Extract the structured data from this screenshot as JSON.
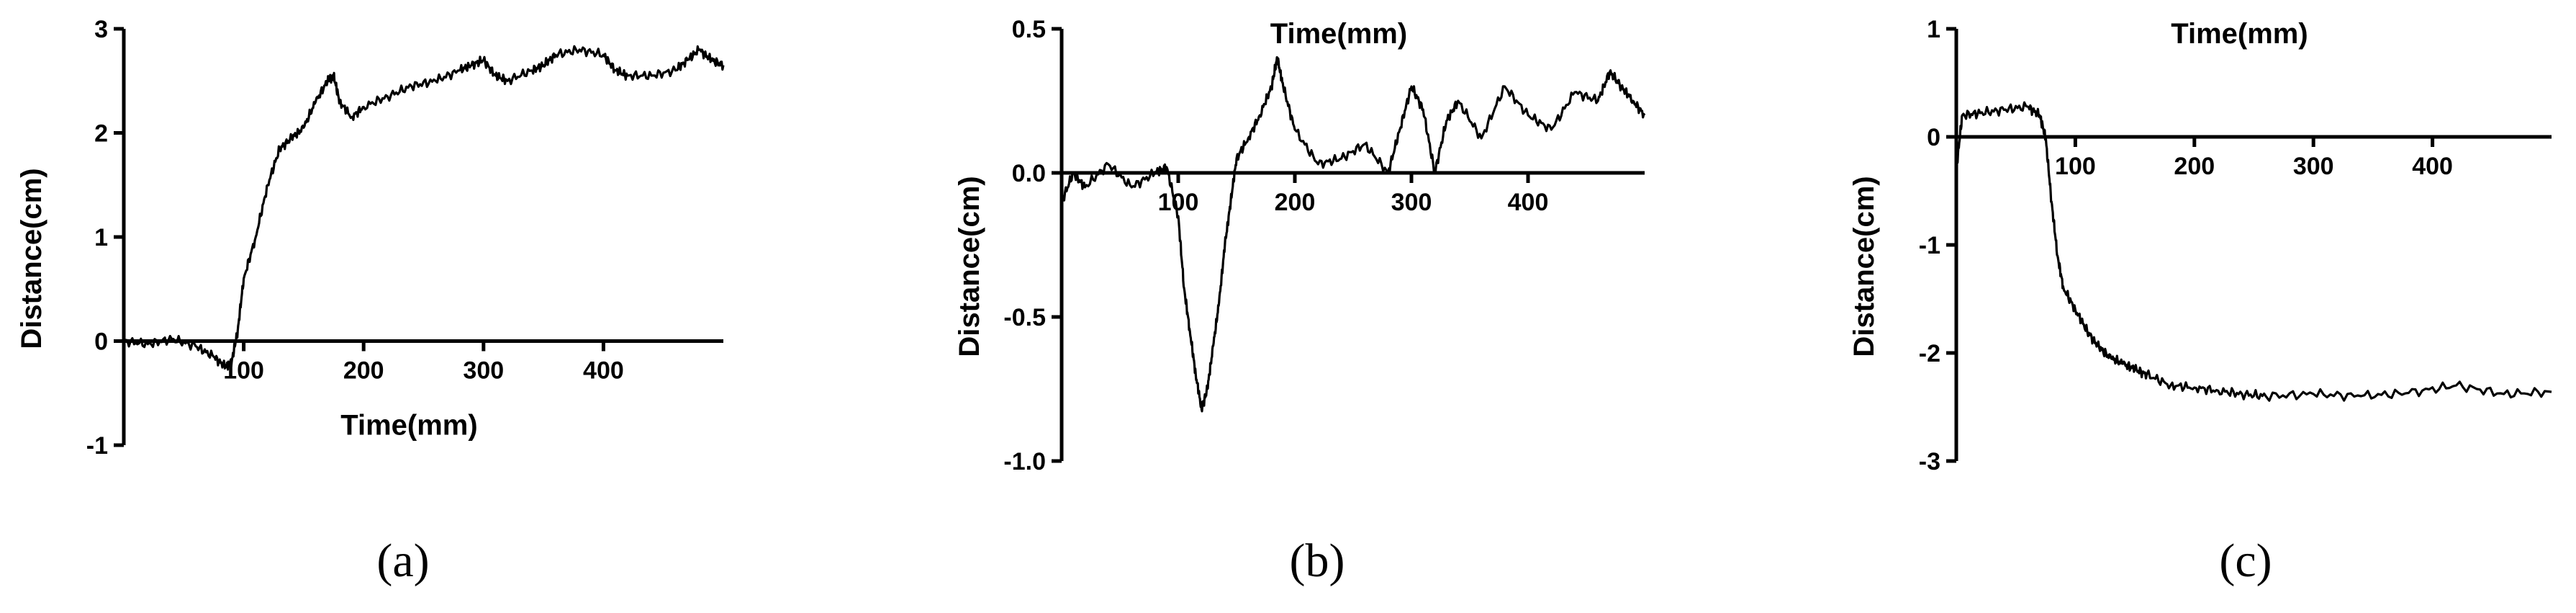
{
  "chart_data": [
    {
      "type": "line",
      "panel": "(a)",
      "xlabel": "Time(mm)",
      "ylabel": "Distance(cm)",
      "xlim": [
        0,
        500
      ],
      "ylim": [
        -1,
        3
      ],
      "xticks": [
        100,
        200,
        300,
        400
      ],
      "yticks": [
        -1,
        0,
        1,
        2,
        3
      ],
      "xtick_labels": [
        "100",
        "200",
        "300",
        "400"
      ],
      "ytick_labels": [
        "-1",
        "0",
        "1",
        "2",
        "3"
      ],
      "x_axis_at": 0,
      "xlabel_position": "below",
      "series": [
        {
          "x": [
            0,
            20,
            40,
            60,
            75,
            85,
            90,
            95,
            100,
            110,
            120,
            130,
            140,
            150,
            160,
            170,
            175,
            180,
            190,
            200,
            220,
            240,
            260,
            280,
            290,
            300,
            310,
            320,
            340,
            350,
            360,
            380,
            400,
            410,
            420,
            440,
            460,
            470,
            480,
            490,
            500
          ],
          "y": [
            0.0,
            -0.03,
            0.02,
            -0.05,
            -0.15,
            -0.25,
            -0.2,
            0.1,
            0.6,
            1.0,
            1.5,
            1.85,
            1.95,
            2.05,
            2.3,
            2.5,
            2.55,
            2.3,
            2.15,
            2.25,
            2.35,
            2.45,
            2.5,
            2.6,
            2.65,
            2.7,
            2.55,
            2.5,
            2.6,
            2.65,
            2.75,
            2.8,
            2.75,
            2.6,
            2.55,
            2.55,
            2.6,
            2.7,
            2.8,
            2.7,
            2.65
          ]
        }
      ]
    },
    {
      "type": "line",
      "panel": "(b)",
      "xlabel": "Time(mm)",
      "ylabel": "Distance(cm)",
      "xlim": [
        0,
        500
      ],
      "ylim": [
        -1.0,
        0.5
      ],
      "xticks": [
        100,
        200,
        300,
        400
      ],
      "yticks": [
        -1.0,
        -0.5,
        0.0,
        0.5
      ],
      "xtick_labels": [
        "100",
        "200",
        "300",
        "400"
      ],
      "ytick_labels": [
        "-1.0",
        "-0.5",
        "0.0",
        "0.5"
      ],
      "x_axis_at": 0,
      "xlabel_position": "top",
      "series": [
        {
          "x": [
            0,
            10,
            20,
            40,
            60,
            80,
            90,
            100,
            105,
            110,
            115,
            120,
            125,
            130,
            135,
            140,
            145,
            150,
            160,
            170,
            180,
            185,
            190,
            200,
            220,
            240,
            260,
            280,
            290,
            300,
            310,
            320,
            330,
            340,
            360,
            380,
            400,
            420,
            440,
            460,
            470,
            480,
            490,
            500
          ],
          "y": [
            -0.1,
            0.0,
            -0.05,
            0.03,
            -0.05,
            0.0,
            0.02,
            -0.15,
            -0.4,
            -0.55,
            -0.7,
            -0.82,
            -0.75,
            -0.6,
            -0.45,
            -0.25,
            -0.1,
            0.05,
            0.12,
            0.2,
            0.3,
            0.4,
            0.3,
            0.15,
            0.03,
            0.05,
            0.1,
            0.0,
            0.15,
            0.3,
            0.22,
            0.0,
            0.18,
            0.25,
            0.12,
            0.3,
            0.2,
            0.15,
            0.28,
            0.25,
            0.35,
            0.3,
            0.25,
            0.2
          ]
        }
      ]
    },
    {
      "type": "line",
      "panel": "(c)",
      "xlabel": "Time(mm)",
      "ylabel": "Distance(cm)",
      "xlim": [
        0,
        500
      ],
      "ylim": [
        -3,
        1
      ],
      "xticks": [
        100,
        200,
        300,
        400
      ],
      "yticks": [
        -3,
        -2,
        -1,
        0,
        1
      ],
      "xtick_labels": [
        "100",
        "200",
        "300",
        "400"
      ],
      "ytick_labels": [
        "-3",
        "-2",
        "-1",
        "0",
        "1"
      ],
      "x_axis_at": 0,
      "xlabel_position": "top",
      "series": [
        {
          "x": [
            0,
            5,
            20,
            40,
            60,
            70,
            75,
            80,
            85,
            90,
            100,
            110,
            120,
            130,
            140,
            150,
            160,
            180,
            200,
            220,
            240,
            260,
            300,
            340,
            380,
            420,
            460,
            500
          ],
          "y": [
            -0.3,
            0.2,
            0.22,
            0.25,
            0.28,
            0.2,
            0.0,
            -0.6,
            -1.1,
            -1.4,
            -1.6,
            -1.8,
            -1.95,
            -2.05,
            -2.1,
            -2.15,
            -2.2,
            -2.3,
            -2.32,
            -2.35,
            -2.38,
            -2.4,
            -2.38,
            -2.4,
            -2.37,
            -2.3,
            -2.38,
            -2.36
          ]
        }
      ]
    }
  ],
  "captions": [
    "(a)",
    "(b)",
    "(c)"
  ]
}
